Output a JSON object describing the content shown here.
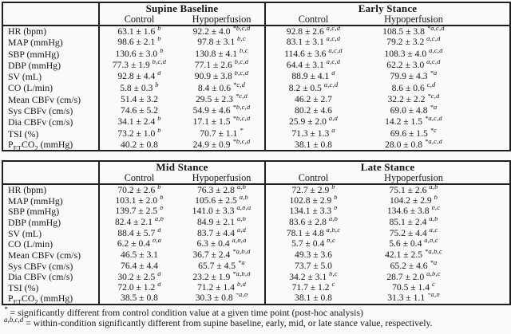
{
  "page": {
    "background": "#fafafa",
    "text_color": "#161616",
    "border_color": "#202020"
  },
  "tables": [
    {
      "name": "supine-baseline-and-early-stance",
      "groups": [
        {
          "title": "Supine Baseline",
          "columns": [
            "Control",
            "Hypoperfusion"
          ]
        },
        {
          "title": "Early Stance",
          "columns": [
            "Control",
            "Hypoperfusion"
          ]
        }
      ],
      "rows": [
        {
          "label": "HR (bpm)",
          "cells": [
            {
              "v": "63.1 ± 1.6",
              "sup": "b"
            },
            {
              "v": "92.2 ± 4.0",
              "sup": "*b,c,d"
            },
            {
              "v": "92.8 ± 2.6",
              "sup": "a,c,d"
            },
            {
              "v": "108.5 ± 3.8",
              "sup": "*a,c,d"
            }
          ]
        },
        {
          "label": "MAP (mmHg)",
          "cells": [
            {
              "v": "98.6 ± 2.1",
              "sup": "b"
            },
            {
              "v": "97.8 ± 3.1",
              "sup": "b,c"
            },
            {
              "v": "83.1 ± 3.1",
              "sup": "a,c,d"
            },
            {
              "v": "79.2 ± 3.2",
              "sup": "a,c,d"
            }
          ]
        },
        {
          "label": "SBP (mmHg)",
          "cells": [
            {
              "v": "130.6 ± 3.0",
              "sup": "b"
            },
            {
              "v": "130.8 ± 4.1",
              "sup": "b,c"
            },
            {
              "v": "114.6 ± 3.6",
              "sup": "a,c,d"
            },
            {
              "v": "108.3 ± 4.0",
              "sup": "a,c,d"
            }
          ]
        },
        {
          "label": "DBP (mmHg)",
          "cells": [
            {
              "v": "77.3 ± 1.9",
              "sup": "b,c,d"
            },
            {
              "v": "77.1 ± 2.6",
              "sup": "b,c,d"
            },
            {
              "v": "64.4 ± 3.1",
              "sup": "a,c,d"
            },
            {
              "v": "62.2 ± 3.0",
              "sup": "a,c,d"
            }
          ]
        },
        {
          "label": "SV (mL)",
          "cells": [
            {
              "v": "92.8 ± 4.4",
              "sup": "d"
            },
            {
              "v": "90.9 ± 3.8",
              "sup": "b,c,d"
            },
            {
              "v": "88.9 ± 4.1",
              "sup": "d"
            },
            {
              "v": "79.9 ± 4.3",
              "sup": "*a"
            }
          ]
        },
        {
          "label": "CO (L/min)",
          "cells": [
            {
              "v": "5.8 ± 0.3",
              "sup": "b"
            },
            {
              "v": "8.4 ± 0.6",
              "sup": "*c,d"
            },
            {
              "v": "8.2 ± 0.5",
              "sup": "a,c,d"
            },
            {
              "v": "8.6 ± 0.6",
              "sup": "c,d"
            }
          ]
        },
        {
          "label": "Mean CBFv (cm/s)",
          "cells": [
            {
              "v": "51.4 ± 3.2",
              "sup": ""
            },
            {
              "v": "29.5 ± 2.3",
              "sup": "*c,d"
            },
            {
              "v": "46.2 ± 2.7",
              "sup": ""
            },
            {
              "v": "32.2 ± 2.2",
              "sup": "*c,d"
            }
          ]
        },
        {
          "label": "Sys CBFv (cm/s)",
          "cells": [
            {
              "v": "74.6 ± 5.2",
              "sup": ""
            },
            {
              "v": "54.9 ± 4.6",
              "sup": "*b,c,d"
            },
            {
              "v": "80.2 ± 4.6",
              "sup": ""
            },
            {
              "v": "69.0 ± 4.8",
              "sup": "*a"
            }
          ]
        },
        {
          "label": "Dia CBFv (cm/s)",
          "cells": [
            {
              "v": "34.1 ± 2.4",
              "sup": "b"
            },
            {
              "v": "17.1 ± 1.5",
              "sup": "*b,c,d"
            },
            {
              "v": "25.9 ± 2.0",
              "sup": "a,d"
            },
            {
              "v": "14.2 ± 1.5",
              "sup": "*a,c,d"
            }
          ]
        },
        {
          "label": "TSI (%)",
          "cells": [
            {
              "v": "73.2 ± 1.0",
              "sup": "b"
            },
            {
              "v": "70.7 ± 1.1",
              "sup": "*"
            },
            {
              "v": "71.3 ± 1.3",
              "sup": "a"
            },
            {
              "v": "69.6 ± 1.5",
              "sup": "*c"
            }
          ]
        },
        {
          "label": "P~ET~CO~2~ (mmHg)",
          "cells": [
            {
              "v": "40.2 ± 0.8",
              "sup": ""
            },
            {
              "v": "24.9 ± 0.9",
              "sup": "*b,c,d"
            },
            {
              "v": "38.1 ± 0.8",
              "sup": ""
            },
            {
              "v": "28.0 ± 0.8",
              "sup": "*a,c,d"
            }
          ]
        }
      ]
    },
    {
      "name": "mid-stance-and-late-stance",
      "groups": [
        {
          "title": "Mid Stance",
          "columns": [
            "Control",
            "Hypoperfusion"
          ]
        },
        {
          "title": "Late Stance",
          "columns": [
            "Control",
            "Hypoperfusion"
          ]
        }
      ],
      "rows": [
        {
          "label": "HR (bpm)",
          "cells": [
            {
              "v": "70.2 ± 2.6",
              "sup": "b"
            },
            {
              "v": "76.3 ± 2.8",
              "sup": "a,b"
            },
            {
              "v": "72.7 ± 2.9",
              "sup": "b"
            },
            {
              "v": "75.1 ± 2.6",
              "sup": "a,b"
            }
          ]
        },
        {
          "label": "MAP (mmHg)",
          "cells": [
            {
              "v": "103.1 ± 2.0",
              "sup": "b"
            },
            {
              "v": "105.6 ± 2.5",
              "sup": "a,b"
            },
            {
              "v": "102.8 ± 2.9",
              "sup": "b"
            },
            {
              "v": "104.2 ± 2.9",
              "sup": "b"
            }
          ]
        },
        {
          "label": "SBP (mmHg)",
          "cells": [
            {
              "v": "139.7 ± 2.5",
              "sup": "b"
            },
            {
              "v": "141.0 ± 3.3",
              "sup": "a,b,d"
            },
            {
              "v": "134.1 ± 3.3",
              "sup": "b"
            },
            {
              "v": "134.6 ± 3.8",
              "sup": "b,c"
            }
          ]
        },
        {
          "label": "DBP (mmHg)",
          "cells": [
            {
              "v": "82.4 ± 2.1",
              "sup": "a,b"
            },
            {
              "v": "84.9 ± 2.1",
              "sup": "a,b"
            },
            {
              "v": "83.6 ± 2.8",
              "sup": "a,b"
            },
            {
              "v": "85.1 ± 2.4",
              "sup": "a,b"
            }
          ]
        },
        {
          "label": "SV (mL)",
          "cells": [
            {
              "v": "88.4 ± 5.7",
              "sup": "d"
            },
            {
              "v": "83.7 ± 4.4",
              "sup": "a,d"
            },
            {
              "v": "78.1 ± 4.8",
              "sup": "a,b,c"
            },
            {
              "v": "75.2 ± 4.4",
              "sup": "a,c"
            }
          ]
        },
        {
          "label": "CO (L/min)",
          "cells": [
            {
              "v": "6.2 ± 0.4",
              "sup": "b,d"
            },
            {
              "v": "6.3 ± 0.4",
              "sup": "a,b,d"
            },
            {
              "v": "5.7 ± 0.4",
              "sup": "b,c"
            },
            {
              "v": "5.6 ± 0.4",
              "sup": "a,b,c"
            }
          ]
        },
        {
          "label": "Mean CBFv (cm/s)",
          "cells": [
            {
              "v": "46.5 ± 3.1",
              "sup": ""
            },
            {
              "v": "36.7 ± 2.4",
              "sup": "*a,b,d"
            },
            {
              "v": "49.3 ± 3.6",
              "sup": ""
            },
            {
              "v": "42.1 ± 2.5",
              "sup": "*a,b,c"
            }
          ]
        },
        {
          "label": "Sys CBFv (cm/s)",
          "cells": [
            {
              "v": "76.4 ± 4.4",
              "sup": ""
            },
            {
              "v": "65.7 ± 4.5",
              "sup": "*a"
            },
            {
              "v": "73.7 ± 5.0",
              "sup": ""
            },
            {
              "v": "65.2 ± 4.6",
              "sup": "*a"
            }
          ]
        },
        {
          "label": "Dia CBFv (cm/s)",
          "cells": [
            {
              "v": "30.2 ± 2.5",
              "sup": "d"
            },
            {
              "v": "23.2 ± 1.9",
              "sup": "*a,b,d"
            },
            {
              "v": "34.2 ± 3.1",
              "sup": "b,c"
            },
            {
              "v": "28.7 ± 2.0",
              "sup": "a,b,c"
            }
          ]
        },
        {
          "label": "TSI (%)",
          "cells": [
            {
              "v": "72.0 ± 1.2",
              "sup": "d"
            },
            {
              "v": "71.2 ± 1.4",
              "sup": "b,d"
            },
            {
              "v": "71.7 ± 1.2",
              "sup": "c"
            },
            {
              "v": "70.5 ± 1.4",
              "sup": "c"
            }
          ]
        },
        {
          "label": "P~ET~CO~2~ (mmHg)",
          "cells": [
            {
              "v": "38.5 ± 0.8",
              "sup": ""
            },
            {
              "v": "30.3 ± 0.8",
              "sup": "*a,b"
            },
            {
              "v": "38.1 ± 0.8",
              "sup": ""
            },
            {
              "v": "31.3 ± 1.1",
              "sup": "*a,b"
            }
          ]
        }
      ]
    }
  ],
  "footnotes": [
    {
      "sup": "*",
      "text": "= significantly different from control condition value at a given time point (post-hoc analysis)"
    },
    {
      "sup": "a,b,c,d",
      "text": "= within-condition significantly different from supine baseline, early, mid, or late stance value, respectively."
    }
  ]
}
